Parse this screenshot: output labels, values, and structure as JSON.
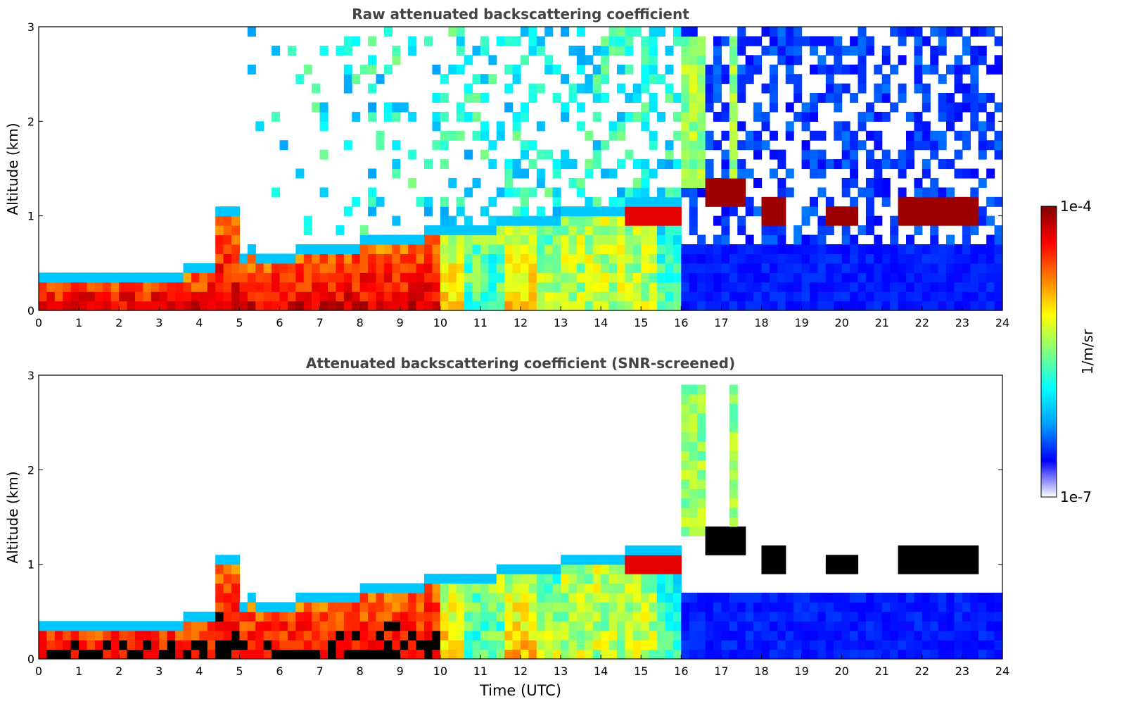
{
  "colors": {
    "colormap": [
      "#ffffff",
      "#0000ff",
      "#00a0ff",
      "#00ffff",
      "#80ff80",
      "#ffff00",
      "#ff8000",
      "#ff0000",
      "#800000"
    ],
    "saturated": "#000000",
    "axis": "#000000",
    "title": "#444444"
  },
  "chart_data": [
    {
      "type": "heatmap",
      "title": "Raw attenuated backscattering coefficient",
      "xlabel": "",
      "ylabel": "Altitude (km)",
      "xlim": [
        0,
        24
      ],
      "ylim": [
        0,
        3
      ],
      "xticks": [
        "0",
        "1",
        "2",
        "3",
        "4",
        "5",
        "6",
        "7",
        "8",
        "9",
        "10",
        "11",
        "12",
        "13",
        "14",
        "15",
        "16",
        "17",
        "18",
        "19",
        "20",
        "21",
        "22",
        "23",
        "24"
      ],
      "yticks": [
        "0",
        "1",
        "2",
        "3"
      ],
      "screened": false,
      "cloud_layers_km": [
        {
          "t_start": 16.6,
          "t_end": 17.6,
          "altitude": 1.25
        },
        {
          "t_start": 18.0,
          "t_end": 18.6,
          "altitude": 1.05
        },
        {
          "t_start": 19.7,
          "t_end": 20.3,
          "altitude": 1.0
        },
        {
          "t_start": 21.5,
          "t_end": 23.3,
          "altitude": 1.05
        }
      ]
    },
    {
      "type": "heatmap",
      "title": "Attenuated backscattering coefficient (SNR-screened)",
      "xlabel": "Time (UTC)",
      "ylabel": "Altitude (km)",
      "xlim": [
        0,
        24
      ],
      "ylim": [
        0,
        3
      ],
      "xticks": [
        "0",
        "1",
        "2",
        "3",
        "4",
        "5",
        "6",
        "7",
        "8",
        "9",
        "10",
        "11",
        "12",
        "13",
        "14",
        "15",
        "16",
        "17",
        "18",
        "19",
        "20",
        "21",
        "22",
        "23",
        "24"
      ],
      "yticks": [
        "0",
        "1",
        "2",
        "3"
      ],
      "screened": true,
      "cloud_layers_km": [
        {
          "t_start": 16.6,
          "t_end": 17.6,
          "altitude": 1.25
        },
        {
          "t_start": 18.0,
          "t_end": 18.6,
          "altitude": 1.05
        },
        {
          "t_start": 19.7,
          "t_end": 20.3,
          "altitude": 1.0
        },
        {
          "t_start": 21.5,
          "t_end": 23.3,
          "altitude": 1.05
        }
      ]
    }
  ],
  "colorbar": {
    "label": "1/m/sr",
    "max_label": "1e-4",
    "min_label": "1e-7",
    "range": [
      1e-07,
      0.0001
    ],
    "scale": "log"
  }
}
